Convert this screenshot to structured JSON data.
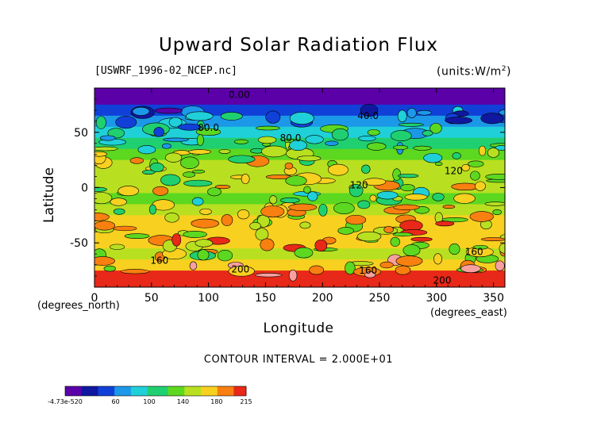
{
  "header": {
    "title": "Upward Solar Radiation Flux",
    "file": "[USWRF_1996-02_NCEP.nc]",
    "units": "(units:W/m^2)"
  },
  "footer": {
    "contour_interval": "CONTOUR INTERVAL = 2.000E+01"
  },
  "colors": {
    "band_0": "#5b00a8",
    "band_20": "#1018a0",
    "band_40": "#1040d8",
    "band_60": "#1c98e8",
    "band_80": "#20d0d8",
    "band_100": "#20d070",
    "band_120": "#5cd820",
    "band_140": "#b8e020",
    "band_160": "#f8d020",
    "band_180": "#f88010",
    "band_200": "#e82818",
    "band_215": "#f8a0a0"
  },
  "chart_data": {
    "type": "heatmap",
    "title": "Upward Solar Radiation Flux",
    "subtitle": "[USWRF_1996-02_NCEP.nc]",
    "units": "(units:W/m^2)",
    "xlabel": "Longitude",
    "ylabel": "Latitude",
    "x_units_label": "(degrees_east)",
    "y_units_label": "(degrees_north)",
    "xlim": [
      0,
      360
    ],
    "ylim": [
      -90,
      90
    ],
    "x_ticks": [
      0,
      50,
      100,
      150,
      200,
      250,
      300,
      350
    ],
    "y_ticks": [
      -50,
      0,
      50
    ],
    "contour_interval": 20,
    "contour_labels": [
      {
        "text": "0.00",
        "lon": 127,
        "lat": 84
      },
      {
        "text": "40.0",
        "lon": 240,
        "lat": 65
      },
      {
        "text": "80.0",
        "lon": 100,
        "lat": 54
      },
      {
        "text": "80.0",
        "lon": 172,
        "lat": 45
      },
      {
        "text": "120",
        "lon": 315,
        "lat": 15
      },
      {
        "text": "120",
        "lon": 232,
        "lat": 2
      },
      {
        "text": "160",
        "lon": 57,
        "lat": -66
      },
      {
        "text": "160",
        "lon": 240,
        "lat": -75
      },
      {
        "text": "160",
        "lon": 333,
        "lat": -58
      },
      {
        "text": "200",
        "lon": 128,
        "lat": -74
      },
      {
        "text": "200",
        "lon": 305,
        "lat": -84
      }
    ],
    "latitude_profile": [
      {
        "lat": 90,
        "value": 0
      },
      {
        "lat": 80,
        "value": 15
      },
      {
        "lat": 70,
        "value": 40
      },
      {
        "lat": 60,
        "value": 70
      },
      {
        "lat": 50,
        "value": 85
      },
      {
        "lat": 40,
        "value": 105
      },
      {
        "lat": 30,
        "value": 125
      },
      {
        "lat": 20,
        "value": 140
      },
      {
        "lat": 10,
        "value": 145
      },
      {
        "lat": 0,
        "value": 140
      },
      {
        "lat": -10,
        "value": 135
      },
      {
        "lat": -20,
        "value": 145
      },
      {
        "lat": -30,
        "value": 160
      },
      {
        "lat": -40,
        "value": 170
      },
      {
        "lat": -50,
        "value": 160
      },
      {
        "lat": -60,
        "value": 150
      },
      {
        "lat": -70,
        "value": 175
      },
      {
        "lat": -80,
        "value": 205
      },
      {
        "lat": -90,
        "value": 210
      }
    ],
    "colorbar": {
      "tick_labels": [
        "-4.73e-520",
        "60",
        "100",
        "140",
        "180",
        "215"
      ],
      "tick_values": [
        0,
        60,
        100,
        140,
        180,
        215
      ],
      "range": [
        0,
        215
      ]
    }
  }
}
